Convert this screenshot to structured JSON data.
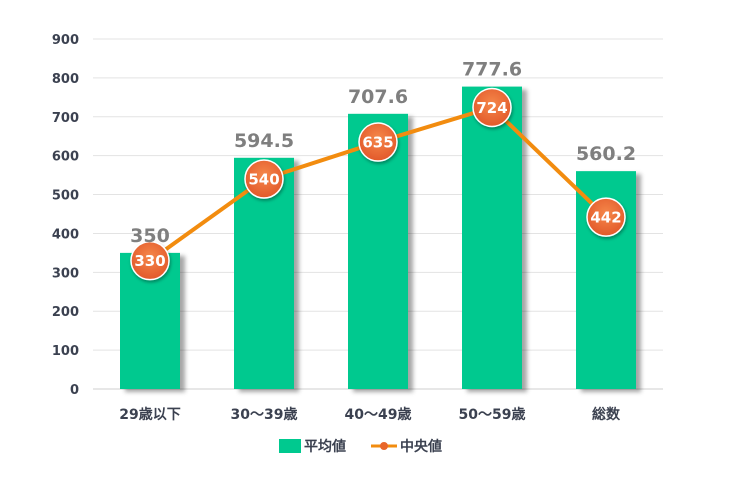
{
  "chart_data": {
    "type": "bar",
    "title": "",
    "xlabel": "",
    "ylabel": "",
    "categories": [
      "29歳以下",
      "30～39歳",
      "40～49歳",
      "50～59歳",
      "総数"
    ],
    "ylim": [
      0,
      900
    ],
    "yticks": [
      0,
      100,
      200,
      300,
      400,
      500,
      600,
      700,
      800,
      900
    ],
    "grid": true,
    "legend_position": "bottom",
    "series": [
      {
        "name": "平均値",
        "type": "bar",
        "color": "#00c98f",
        "values": [
          350,
          594.5,
          707.6,
          777.6,
          560.2
        ],
        "labels": [
          "350",
          "594.5",
          "707.6",
          "777.6",
          "560.2"
        ]
      },
      {
        "name": "中央値",
        "type": "line",
        "color": "#f28c0f",
        "marker_color": "#e8662a",
        "values": [
          330,
          540,
          635,
          724,
          442
        ],
        "labels": [
          "330",
          "540",
          "635",
          "724",
          "442"
        ]
      }
    ]
  }
}
